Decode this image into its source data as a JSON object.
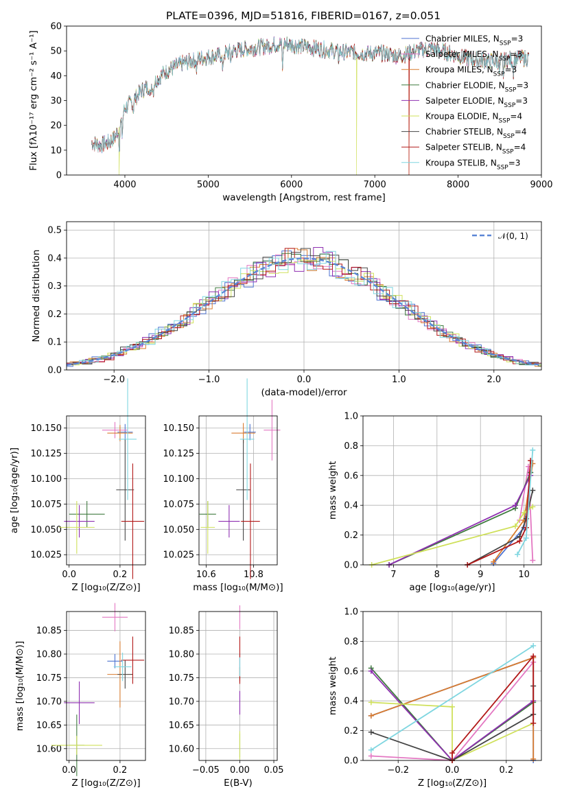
{
  "figure": {
    "title": "PLATE=0396, MJD=51816, FIBERID=0167, z=0.051",
    "colors": {
      "Chabrier MILES": "#4c72d0",
      "Salpeter MILES": "#e377c2",
      "Kroupa MILES": "#d97b2e",
      "Chabrier ELODIE": "#3f7a3f",
      "Salpeter ELODIE": "#8e2fb0",
      "Kroupa ELODIE": "#cfe05a",
      "Chabrier STELIB": "#444444",
      "Salpeter STELIB": "#b21818",
      "Kroupa STELIB": "#7fd6e0"
    }
  },
  "chart_data": [
    {
      "id": "spectrum",
      "type": "line",
      "xlabel": "wavelength [Angstrom, rest frame]",
      "ylabel": "Flux [fλ10⁻¹⁷ erg cm⁻² s⁻¹ A⁻¹]",
      "xlim": [
        3300,
        9000
      ],
      "ylim": [
        0,
        60
      ],
      "xticks": [
        4000,
        5000,
        6000,
        7000,
        8000,
        9000
      ],
      "yticks": [
        0,
        10,
        20,
        30,
        40,
        50,
        60
      ],
      "grid": false,
      "legend_position": "right",
      "legend": [
        "Chabrier MILES, N_SSP=3",
        "Salpeter MILES, N_SSP=3",
        "Kroupa MILES, N_SSP=3",
        "Chabrier ELODIE, N_SSP=3",
        "Salpeter ELODIE, N_SSP=3",
        "Kroupa ELODIE, N_SSP=4",
        "Chabrier STELIB, N_SSP=4",
        "Salpeter STELIB, N_SSP=4",
        "Kroupa STELIB, N_SSP=3"
      ],
      "continuum": [
        [
          3600,
          13
        ],
        [
          3700,
          12
        ],
        [
          3800,
          13
        ],
        [
          3880,
          15
        ],
        [
          3950,
          21
        ],
        [
          4000,
          27
        ],
        [
          4100,
          30
        ],
        [
          4200,
          34
        ],
        [
          4300,
          36
        ],
        [
          4400,
          39
        ],
        [
          4500,
          42
        ],
        [
          4700,
          45
        ],
        [
          4900,
          47
        ],
        [
          5100,
          48
        ],
        [
          5300,
          50
        ],
        [
          5500,
          51
        ],
        [
          5700,
          52
        ],
        [
          5900,
          53
        ],
        [
          6100,
          52
        ],
        [
          6300,
          51
        ],
        [
          6500,
          50
        ],
        [
          6700,
          49.5
        ],
        [
          6900,
          49
        ],
        [
          7100,
          49
        ],
        [
          7300,
          48
        ],
        [
          7500,
          50
        ],
        [
          7700,
          51
        ],
        [
          7900,
          49
        ],
        [
          8100,
          47
        ],
        [
          8300,
          46
        ],
        [
          8500,
          46
        ],
        [
          8700,
          47
        ],
        [
          8850,
          47
        ]
      ],
      "absorption_dips": [
        [
          3933,
          8
        ],
        [
          3968,
          7
        ],
        [
          4101,
          4
        ],
        [
          4304,
          6
        ],
        [
          4340,
          4
        ],
        [
          4861,
          4
        ],
        [
          5175,
          8
        ],
        [
          5270,
          3
        ],
        [
          5893,
          10
        ],
        [
          6563,
          3
        ],
        [
          8498,
          5
        ],
        [
          8542,
          6
        ],
        [
          8662,
          5
        ]
      ],
      "model_dropouts": [
        {
          "series": "Kroupa ELODIE",
          "x": 3930,
          "y": 0
        },
        {
          "series": "Kroupa ELODIE",
          "x": 6780,
          "y": 0
        },
        {
          "series": "Salpeter STELIB",
          "x": 7410,
          "y": 0
        },
        {
          "series": "Kroupa MILES",
          "x": 7410,
          "y": 0
        }
      ]
    },
    {
      "id": "residuals",
      "type": "histogram",
      "xlabel": "(data-model)/error",
      "ylabel": "Normed distribution",
      "xlim": [
        -2.5,
        2.5
      ],
      "ylim": [
        0,
        0.53
      ],
      "xticks": [
        -2,
        -1,
        0,
        1,
        2
      ],
      "yticks": [
        0.0,
        0.1,
        0.2,
        0.3,
        0.4,
        0.5
      ],
      "grid": true,
      "bin_width": 0.1,
      "reference": {
        "name": "N(0, 1)",
        "mean": 0,
        "sigma": 1
      }
    },
    {
      "id": "age-vs-Z",
      "type": "scatter",
      "xlabel": "Z [log₁₀(Z/Z⊙)]",
      "ylabel": "age  [log₁₀(age/yr)]",
      "xlim": [
        -0.01,
        0.3
      ],
      "ylim": [
        10.015,
        10.162
      ],
      "xticks": [
        0.0,
        0.2
      ],
      "yticks": [
        10.025,
        10.05,
        10.075,
        10.1,
        10.125,
        10.15
      ],
      "grid": true,
      "points": [
        {
          "series": "Chabrier MILES",
          "x": 0.22,
          "y": 10.146,
          "xerr": 0.03,
          "yerr": 0.008
        },
        {
          "series": "Salpeter MILES",
          "x": 0.18,
          "y": 10.148,
          "xerr": 0.05,
          "yerr": 0.008
        },
        {
          "series": "Kroupa MILES",
          "x": 0.2,
          "y": 10.145,
          "xerr": 0.05,
          "yerr": 0.008
        },
        {
          "series": "Chabrier ELODIE",
          "x": 0.07,
          "y": 10.065,
          "xerr": 0.07,
          "yerr": 0.013
        },
        {
          "series": "Salpeter ELODIE",
          "x": 0.04,
          "y": 10.058,
          "xerr": 0.06,
          "yerr": 0.016
        },
        {
          "series": "Kroupa ELODIE",
          "x": 0.03,
          "y": 10.052,
          "xerr": 0.07,
          "yerr": 0.026
        },
        {
          "series": "Chabrier STELIB",
          "x": 0.22,
          "y": 10.089,
          "xerr": 0.035,
          "yerr": 0.05
        },
        {
          "series": "Salpeter STELIB",
          "x": 0.25,
          "y": 10.058,
          "xerr": 0.045,
          "yerr": 0.057
        },
        {
          "series": "Kroupa STELIB",
          "x": 0.23,
          "y": 10.139,
          "xerr": 0.035,
          "yerr": 0.06
        }
      ]
    },
    {
      "id": "age-vs-mass",
      "type": "scatter",
      "xlabel": "mass [log₁₀(M/M⊙)]",
      "ylabel": "",
      "xlim": [
        10.57,
        10.9
      ],
      "ylim": [
        10.015,
        10.162
      ],
      "xticks": [
        10.6,
        10.8
      ],
      "yticks": [
        10.025,
        10.05,
        10.075,
        10.1,
        10.125,
        10.15
      ],
      "grid": true,
      "points": [
        {
          "series": "Chabrier MILES",
          "x": 10.785,
          "y": 10.146,
          "xerr": 0.025,
          "yerr": 0.008
        },
        {
          "series": "Salpeter MILES",
          "x": 10.878,
          "y": 10.148,
          "xerr": 0.035,
          "yerr": 0.03
        },
        {
          "series": "Kroupa MILES",
          "x": 10.757,
          "y": 10.145,
          "xerr": 0.05,
          "yerr": 0.01
        },
        {
          "series": "Chabrier ELODIE",
          "x": 10.607,
          "y": 10.065,
          "xerr": 0.035,
          "yerr": 0.013
        },
        {
          "series": "Salpeter ELODIE",
          "x": 10.697,
          "y": 10.058,
          "xerr": 0.045,
          "yerr": 0.016
        },
        {
          "series": "Kroupa ELODIE",
          "x": 10.607,
          "y": 10.052,
          "xerr": 0.03,
          "yerr": 0.026
        },
        {
          "series": "Chabrier STELIB",
          "x": 10.757,
          "y": 10.089,
          "xerr": 0.03,
          "yerr": 0.05
        },
        {
          "series": "Salpeter STELIB",
          "x": 10.787,
          "y": 10.058,
          "xerr": 0.04,
          "yerr": 0.057
        },
        {
          "series": "Kroupa STELIB",
          "x": 10.773,
          "y": 10.139,
          "xerr": 0.03,
          "yerr": 0.06
        }
      ]
    },
    {
      "id": "weight-vs-age",
      "type": "line",
      "xlabel": "age  [log₁₀(age/yr)]",
      "ylabel": "mass weight",
      "xlim": [
        6.3,
        10.4
      ],
      "ylim": [
        0,
        1
      ],
      "xticks": [
        7,
        8,
        9,
        10
      ],
      "yticks": [
        0.0,
        0.2,
        0.4,
        0.6,
        0.8,
        1.0
      ],
      "grid": true,
      "series": [
        {
          "name": "Chabrier MILES",
          "x": [
            9.3,
            10.0,
            10.15
          ],
          "y": [
            0.01,
            0.25,
            0.62
          ]
        },
        {
          "name": "Salpeter MILES",
          "x": [
            9.9,
            10.1,
            10.2
          ],
          "y": [
            0.3,
            0.66,
            0.03
          ]
        },
        {
          "name": "Kroupa MILES",
          "x": [
            9.3,
            10.0,
            10.2
          ],
          "y": [
            0.02,
            0.3,
            0.68
          ]
        },
        {
          "name": "Chabrier ELODIE",
          "x": [
            6.9,
            9.8,
            10.15
          ],
          "y": [
            0.0,
            0.38,
            0.62
          ]
        },
        {
          "name": "Salpeter ELODIE",
          "x": [
            6.9,
            9.8,
            10.15
          ],
          "y": [
            0.0,
            0.4,
            0.6
          ]
        },
        {
          "name": "Kroupa ELODIE",
          "x": [
            6.5,
            9.8,
            10.0,
            10.2
          ],
          "y": [
            0.0,
            0.26,
            0.35,
            0.39
          ]
        },
        {
          "name": "Chabrier STELIB",
          "x": [
            8.7,
            9.9,
            10.05,
            10.2
          ],
          "y": [
            0.0,
            0.19,
            0.31,
            0.5
          ]
        },
        {
          "name": "Salpeter STELIB",
          "x": [
            8.7,
            9.9,
            10.05,
            10.15
          ],
          "y": [
            0.0,
            0.16,
            0.25,
            0.7
          ]
        },
        {
          "name": "Kroupa STELIB",
          "x": [
            9.85,
            10.05,
            10.2
          ],
          "y": [
            0.07,
            0.18,
            0.77
          ]
        }
      ]
    },
    {
      "id": "mass-vs-Z",
      "type": "scatter",
      "xlabel": "Z [log₁₀(Z/Z⊙)]",
      "ylabel": "mass [log₁₀(M/M⊙)]",
      "xlim": [
        -0.01,
        0.3
      ],
      "ylim": [
        10.575,
        10.89
      ],
      "xticks": [
        0.0,
        0.2
      ],
      "yticks": [
        10.6,
        10.65,
        10.7,
        10.75,
        10.8,
        10.85
      ],
      "grid": true,
      "points": [
        {
          "series": "Chabrier MILES",
          "x": 0.18,
          "y": 10.785,
          "xerr": 0.03,
          "yerr": 0.015
        },
        {
          "series": "Salpeter MILES",
          "x": 0.18,
          "y": 10.878,
          "xerr": 0.05,
          "yerr": 0.03
        },
        {
          "series": "Kroupa MILES",
          "x": 0.2,
          "y": 10.757,
          "xerr": 0.05,
          "yerr": 0.07
        },
        {
          "series": "Chabrier ELODIE",
          "x": 0.03,
          "y": 10.607,
          "xerr": 0.03,
          "yerr": 0.065
        },
        {
          "series": "Salpeter ELODIE",
          "x": 0.04,
          "y": 10.697,
          "xerr": 0.06,
          "yerr": 0.045
        },
        {
          "series": "Kroupa ELODIE",
          "x": 0.03,
          "y": 10.607,
          "xerr": 0.1,
          "yerr": 0.02
        },
        {
          "series": "Chabrier STELIB",
          "x": 0.22,
          "y": 10.757,
          "xerr": 0.03,
          "yerr": 0.03
        },
        {
          "series": "Salpeter STELIB",
          "x": 0.25,
          "y": 10.787,
          "xerr": 0.045,
          "yerr": 0.05
        },
        {
          "series": "Kroupa STELIB",
          "x": 0.21,
          "y": 10.773,
          "xerr": 0.035,
          "yerr": 0.03
        }
      ]
    },
    {
      "id": "mass-vs-EBV",
      "type": "scatter",
      "xlabel": "E(B-V)",
      "ylabel": "",
      "xlim": [
        -0.06,
        0.055
      ],
      "ylim": [
        10.575,
        10.89
      ],
      "xticks": [
        -0.05,
        0.0,
        0.05
      ],
      "yticks": [
        10.6,
        10.65,
        10.7,
        10.75,
        10.8,
        10.85
      ],
      "grid": true,
      "points": [
        {
          "series": "Chabrier MILES",
          "x": 0.0,
          "y": 10.785,
          "xerr": 0.0,
          "yerr": 0.015
        },
        {
          "series": "Salpeter MILES",
          "x": 0.0,
          "y": 10.878,
          "xerr": 0.0,
          "yerr": 0.025
        },
        {
          "series": "Kroupa MILES",
          "x": 0.0,
          "y": 10.757,
          "xerr": 0.0,
          "yerr": 0.015
        },
        {
          "series": "Chabrier ELODIE",
          "x": 0.0,
          "y": 10.607,
          "xerr": 0.0,
          "yerr": 0.025
        },
        {
          "series": "Salpeter ELODIE",
          "x": 0.0,
          "y": 10.697,
          "xerr": 0.0,
          "yerr": 0.025
        },
        {
          "series": "Kroupa ELODIE",
          "x": 0.0,
          "y": 10.607,
          "xerr": 0.0,
          "yerr": 0.03
        },
        {
          "series": "Chabrier STELIB",
          "x": 0.0,
          "y": 10.757,
          "xerr": 0.0,
          "yerr": 0.015
        },
        {
          "series": "Salpeter STELIB",
          "x": 0.0,
          "y": 10.787,
          "xerr": 0.0,
          "yerr": 0.05
        },
        {
          "series": "Kroupa STELIB",
          "x": 0.0,
          "y": 10.773,
          "xerr": 0.0,
          "yerr": 0.02
        }
      ]
    },
    {
      "id": "weight-vs-Z",
      "type": "line",
      "xlabel": "Z [log₁₀(Z/Z⊙)]",
      "ylabel": "mass weight",
      "xlim": [
        -0.33,
        0.33
      ],
      "ylim": [
        0,
        1
      ],
      "xticks": [
        -0.2,
        0.0,
        0.2
      ],
      "yticks": [
        0.0,
        0.2,
        0.4,
        0.6,
        0.8,
        1.0
      ],
      "grid": true,
      "series": [
        {
          "name": "Chabrier MILES",
          "x": [
            -0.3,
            0.3,
            0.3
          ],
          "y": [
            0.3,
            0.69,
            0.0
          ]
        },
        {
          "name": "Salpeter MILES",
          "x": [
            -0.3,
            0.0,
            0.3
          ],
          "y": [
            0.03,
            0.0,
            0.66
          ]
        },
        {
          "name": "Kroupa MILES",
          "x": [
            -0.3,
            0.3,
            0.3
          ],
          "y": [
            0.3,
            0.69,
            0.01
          ]
        },
        {
          "name": "Chabrier ELODIE",
          "x": [
            -0.3,
            0.0,
            0.3
          ],
          "y": [
            0.62,
            0.0,
            0.39
          ]
        },
        {
          "name": "Salpeter ELODIE",
          "x": [
            -0.3,
            0.0,
            0.3
          ],
          "y": [
            0.6,
            0.0,
            0.4
          ]
        },
        {
          "name": "Kroupa ELODIE",
          "x": [
            -0.3,
            0.0,
            0.0,
            0.3
          ],
          "y": [
            0.39,
            0.36,
            0.0,
            0.25
          ]
        },
        {
          "name": "Chabrier STELIB",
          "x": [
            -0.3,
            0.0,
            0.3,
            0.3
          ],
          "y": [
            0.19,
            0.0,
            0.31,
            0.5
          ]
        },
        {
          "name": "Salpeter STELIB",
          "x": [
            0.0,
            0.0,
            0.3,
            0.3
          ],
          "y": [
            0.0,
            0.05,
            0.7,
            0.25
          ]
        },
        {
          "name": "Kroupa STELIB",
          "x": [
            -0.3,
            0.3
          ],
          "y": [
            0.07,
            0.77
          ]
        }
      ]
    }
  ]
}
